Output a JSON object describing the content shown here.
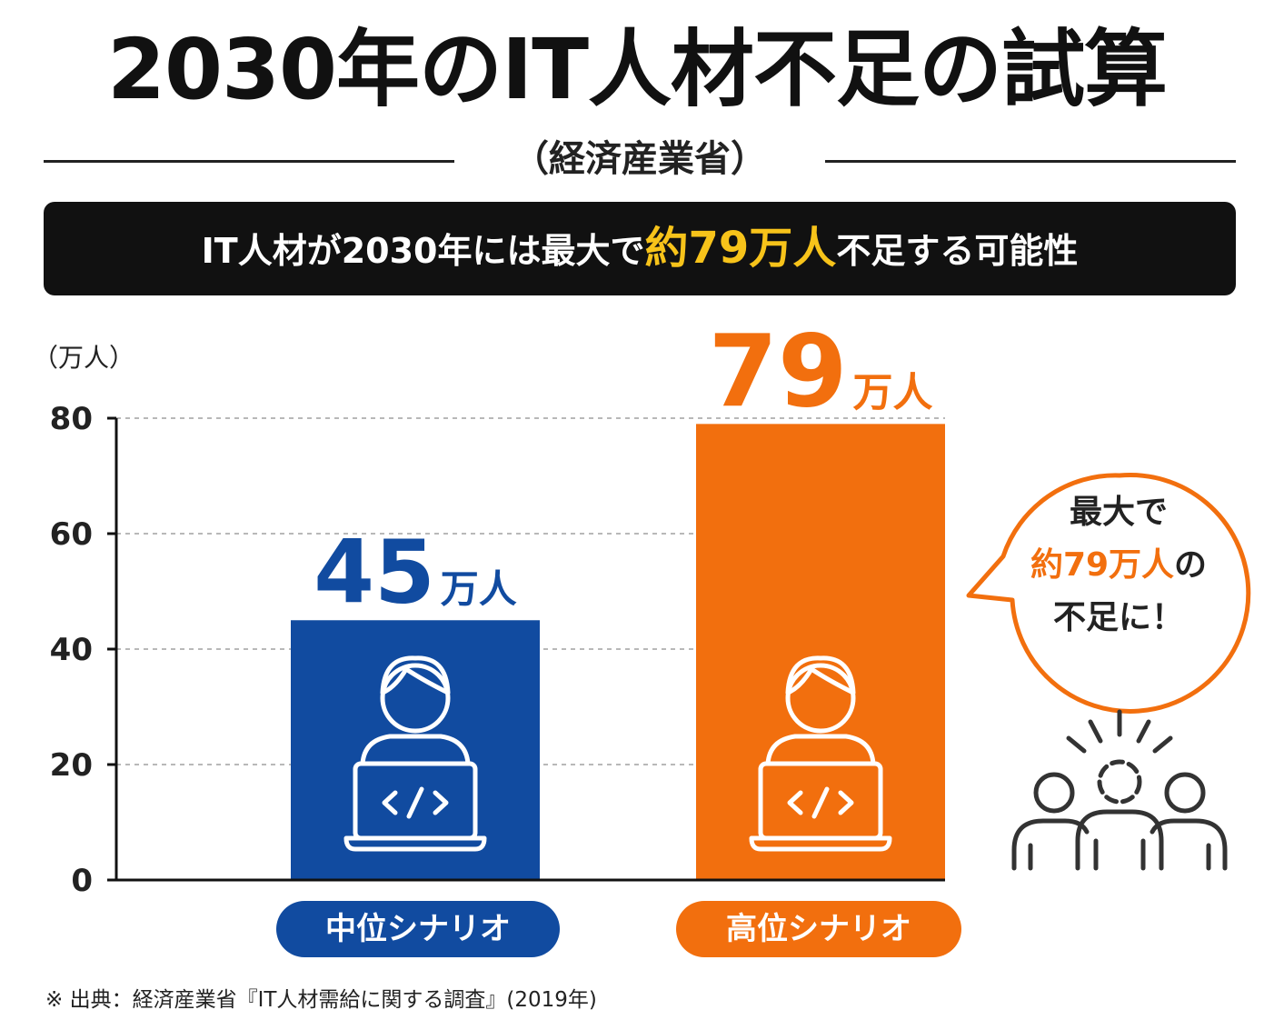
{
  "title": "2030年のIT人材不足の試算",
  "subtitle": "（経済産業省）",
  "banner": {
    "before": "IT人材が2030年には最大で",
    "highlight": "約79万人",
    "after": "不足する可能性"
  },
  "chart_data": {
    "type": "bar",
    "y_unit_label": "（万人）",
    "ylim": [
      0,
      80
    ],
    "yticks": [
      0,
      20,
      40,
      60,
      80
    ],
    "grid": true,
    "categories": [
      "中位シナリオ",
      "高位シナリオ"
    ],
    "values": [
      45,
      79
    ],
    "value_unit": "万人",
    "colors": [
      "#114ba0",
      "#f26f0e"
    ]
  },
  "callout": {
    "line1": "最大で",
    "line2_highlight": "約79万人",
    "line2_suffix": "の",
    "line3": "不足に！"
  },
  "source": "※ 出典：経済産業省『IT人材需給に関する調査』(2019年)",
  "icons": [
    "programmer-laptop-icon",
    "crowd-alert-icon"
  ],
  "colors": {
    "blue": "#114ba0",
    "orange": "#f26f0e",
    "highlight_yellow": "#f7c31a",
    "dark": "#111111"
  }
}
